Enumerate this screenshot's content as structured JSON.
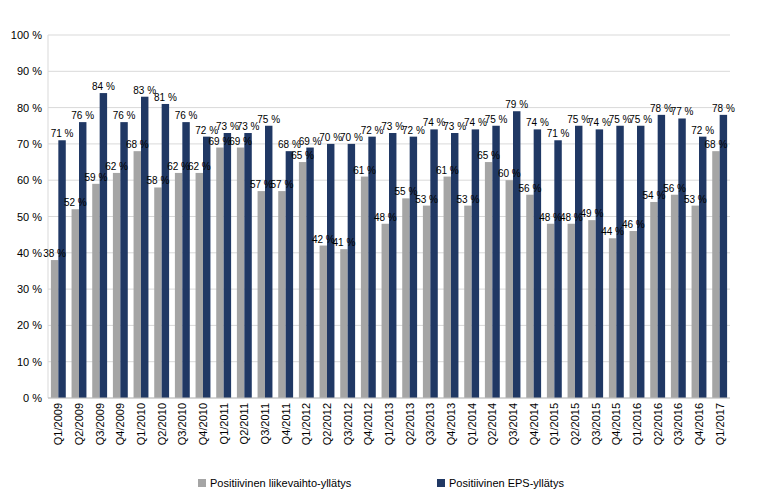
{
  "chart_data": {
    "type": "bar",
    "categories": [
      "Q1/2009",
      "Q2/2009",
      "Q3/2009",
      "Q4/2009",
      "Q1/2010",
      "Q2/2010",
      "Q3/2010",
      "Q4/2010",
      "Q1/2011",
      "Q2/2011",
      "Q3/2011",
      "Q4/2011",
      "Q1/2012",
      "Q2/2012",
      "Q3/2012",
      "Q4/2012",
      "Q1/2013",
      "Q2/2013",
      "Q3/2013",
      "Q4/2013",
      "Q1/2014",
      "Q2/2014",
      "Q3/2014",
      "Q4/2014",
      "Q1/2015",
      "Q2/2015",
      "Q3/2015",
      "Q4/2015",
      "Q1/2016",
      "Q2/2016",
      "Q3/2016",
      "Q4/2016",
      "Q1/2017"
    ],
    "series": [
      {
        "name": "Positiivinen liikevaihto-yllätys",
        "color": "#a5a5a5",
        "values": [
          38,
          52,
          59,
          62,
          68,
          58,
          62,
          62,
          69,
          69,
          57,
          57,
          65,
          42,
          41,
          61,
          48,
          55,
          53,
          61,
          53,
          65,
          60,
          56,
          48,
          48,
          49,
          44,
          46,
          54,
          56,
          53,
          68
        ],
        "value_labels": [
          "38 %",
          "52 %",
          "59 %",
          "62 %",
          "68 %",
          "58 %",
          "62 %",
          "62 %",
          "69 %",
          "69 %",
          "57 %",
          "57 %",
          "65 %",
          "42 %",
          "41 %",
          "61 %",
          "48 %",
          "55 %",
          "53 %",
          "61 %",
          "53 %",
          "65 %",
          "60 %",
          "56 %",
          "48 %",
          "48 %",
          "49 %",
          "44 %",
          "46 %",
          "54 %",
          "56 %",
          "53 %",
          "68 %"
        ]
      },
      {
        "name": "Positiivinen EPS-yllätys",
        "color": "#203864",
        "values": [
          71,
          76,
          84,
          76,
          83,
          81,
          76,
          72,
          73,
          73,
          75,
          68,
          69,
          70,
          70,
          72,
          73,
          72,
          74,
          73,
          74,
          75,
          79,
          74,
          71,
          75,
          74,
          75,
          75,
          78,
          77,
          72,
          78
        ],
        "value_labels": [
          "71 %",
          "76 %",
          "84 %",
          "76 %",
          "83 %",
          "81 %",
          "76 %",
          "72 %",
          "73 %",
          "73 %",
          "75 %",
          "68 %",
          "69 %",
          "70 %",
          "70 %",
          "72 %",
          "73 %",
          "72 %",
          "74 %",
          "73 %",
          "74 %",
          "75 %",
          "79 %",
          "74 %",
          "71 %",
          "75 %",
          "74 %",
          "75 %",
          "75 %",
          "78 %",
          "77 %",
          "72 %",
          "78 %"
        ]
      }
    ],
    "ylim": [
      0,
      100
    ],
    "yticks": [
      {
        "value": 0,
        "label": "0 %"
      },
      {
        "value": 10,
        "label": "10 %"
      },
      {
        "value": 20,
        "label": "20 %"
      },
      {
        "value": 30,
        "label": "30 %"
      },
      {
        "value": 40,
        "label": "40 %"
      },
      {
        "value": 50,
        "label": "50 %"
      },
      {
        "value": 60,
        "label": "60 %"
      },
      {
        "value": 70,
        "label": "70 %"
      },
      {
        "value": 80,
        "label": "80 %"
      },
      {
        "value": 90,
        "label": "90 %"
      },
      {
        "value": 100,
        "label": "100 %"
      }
    ],
    "grid": true,
    "data_labels": true,
    "legend": "bottom"
  }
}
